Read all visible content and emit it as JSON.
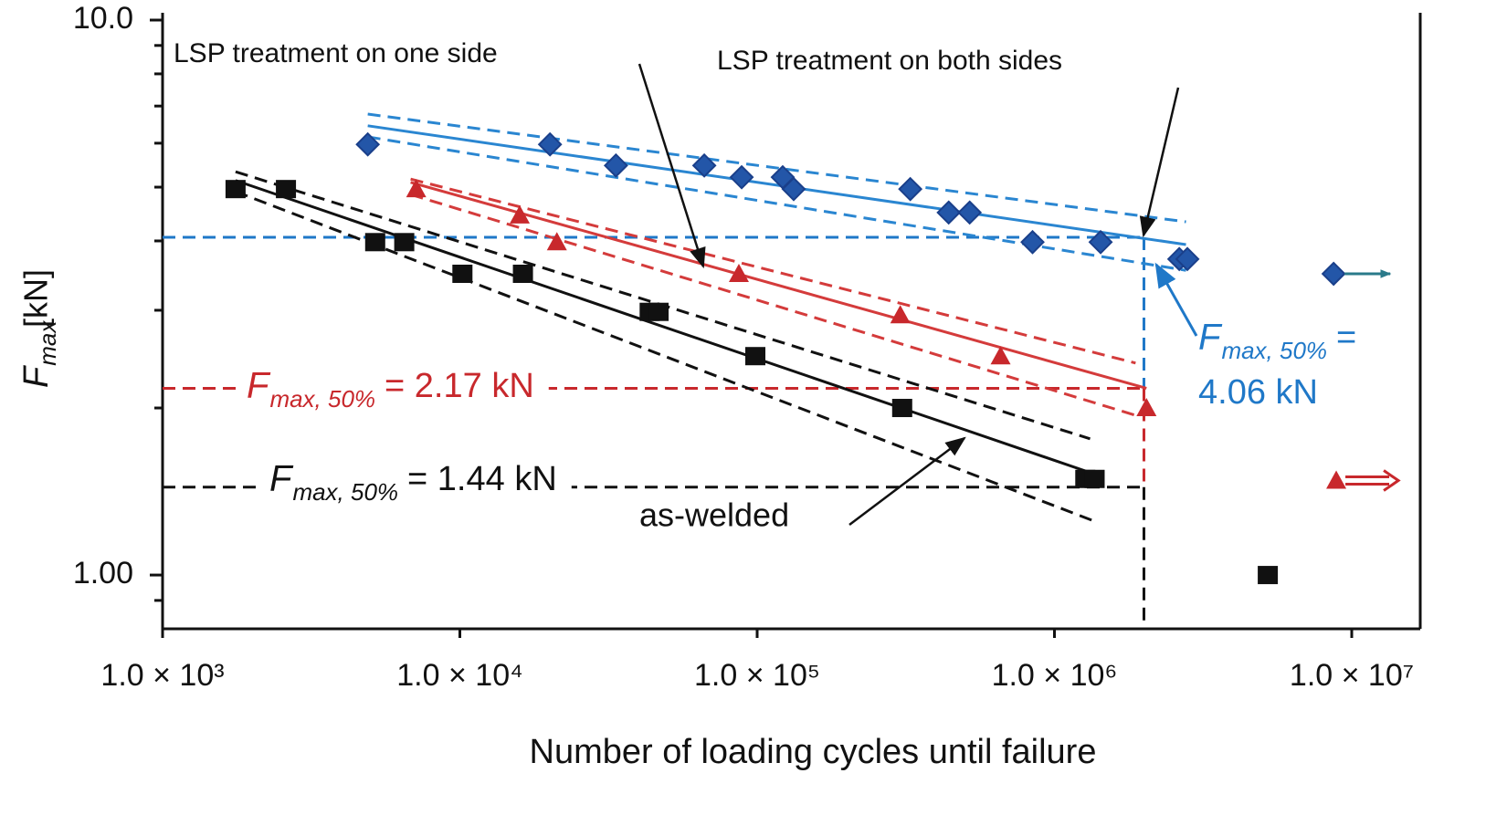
{
  "chart_data": {
    "type": "scatter",
    "xlabel": "Number of loading cycles until failure",
    "ylabel": {
      "symbol": "F",
      "subscript": "max",
      "unit": "[kN]"
    },
    "xscale": "log",
    "yscale": "log",
    "xlim": [
      1000,
      17000000
    ],
    "ylim": [
      0.8,
      10
    ],
    "xticks": [
      {
        "value": 1000,
        "label": "1.0 × 10³"
      },
      {
        "value": 10000,
        "label": "1.0 × 10⁴"
      },
      {
        "value": 100000,
        "label": "1.0 × 10⁵"
      },
      {
        "value": 1000000,
        "label": "1.0 × 10⁶"
      },
      {
        "value": 10000000,
        "label": "1.0 × 10⁷"
      }
    ],
    "yticks": [
      {
        "value": 1,
        "label": "1.00"
      },
      {
        "value": 10,
        "label": "10.0"
      }
    ],
    "yminorticks": [
      0.9,
      2,
      3,
      4,
      5,
      6,
      7,
      8,
      9
    ],
    "series": [
      {
        "color": "#111111",
        "marker": "square",
        "x": [
          1760,
          2600,
          5190,
          6500,
          10200,
          16300,
          43500,
          46600,
          98600,
          307500,
          1270000,
          1365000
        ],
        "values": [
          4.96,
          4.96,
          3.98,
          3.98,
          3.49,
          3.49,
          2.98,
          2.98,
          2.48,
          2.0,
          1.49,
          1.49
        ],
        "runout": {
          "x": 5220000,
          "value": 1.0
        }
      },
      {
        "color": "#c8282c",
        "marker": "triangle",
        "x": [
          7130,
          15900,
          21200,
          86800,
          303000,
          659000,
          2040000
        ],
        "values": [
          4.96,
          4.45,
          3.98,
          3.49,
          2.94,
          2.48,
          2.0
        ],
        "runout": {
          "x": 8870000,
          "value": 1.48,
          "arrow": "double"
        }
      },
      {
        "color": "#2356a8",
        "marker": "diamond",
        "x": [
          4900,
          20100,
          33500,
          66400,
          88700,
          121900,
          132700,
          327400,
          440800,
          518600,
          844000,
          1430000,
          2630000,
          2800000
        ],
        "values": [
          5.97,
          5.97,
          5.47,
          5.47,
          5.21,
          5.21,
          4.96,
          4.96,
          4.5,
          4.5,
          3.98,
          3.98,
          3.71,
          3.71
        ],
        "runout": {
          "x": 8690000,
          "value": 3.49,
          "arrow": "single"
        }
      }
    ],
    "lines": [
      {
        "color": "#111111",
        "dash": false,
        "x": [
          1760,
          1365000
        ],
        "values": [
          5.14,
          1.52
        ]
      },
      {
        "color": "#111111",
        "dash": true,
        "x": [
          1760,
          1318000
        ],
        "values": [
          5.33,
          1.76
        ]
      },
      {
        "color": "#111111",
        "dash": true,
        "x": [
          1760,
          1365000
        ],
        "values": [
          4.91,
          1.25
        ]
      },
      {
        "color": "#d43b3b",
        "dash": false,
        "x": [
          6830,
          2040000
        ],
        "values": [
          5.1,
          2.17
        ]
      },
      {
        "color": "#d43b3b",
        "dash": true,
        "x": [
          6830,
          1875000
        ],
        "values": [
          5.17,
          2.41
        ]
      },
      {
        "color": "#d43b3b",
        "dash": true,
        "x": [
          6830,
          1875000
        ],
        "values": [
          4.85,
          1.94
        ]
      },
      {
        "color": "#2a86d1",
        "dash": false,
        "x": [
          4900,
          2770000
        ],
        "values": [
          6.45,
          3.94
        ]
      },
      {
        "color": "#2a86d1",
        "dash": true,
        "x": [
          4900,
          2770000
        ],
        "values": [
          6.77,
          4.33
        ]
      },
      {
        "color": "#2a86d1",
        "dash": true,
        "x": [
          4900,
          2770000
        ],
        "values": [
          6.16,
          3.54
        ]
      }
    ],
    "references": [
      {
        "color": "#1f78c8",
        "value": 4.06,
        "x": 2000000,
        "symbol": "F",
        "subscript": "max, 50%",
        "label_lines": [
          "=",
          "4.06 kN"
        ]
      },
      {
        "color": "#c8282c",
        "value": 2.17,
        "x": 2000000,
        "symbol": "F",
        "subscript": "max, 50%",
        "label_lines": [
          "= 2.17 kN"
        ]
      },
      {
        "color": "#111111",
        "value": 1.44,
        "x": 2000000,
        "symbol": "F",
        "subscript": "max, 50%",
        "label_lines": [
          "= 1.44 kN"
        ]
      }
    ],
    "annotations": [
      {
        "text": "LSP treatment on one side"
      },
      {
        "text": "LSP treatment on both sides"
      },
      {
        "text": "as-welded"
      }
    ]
  }
}
